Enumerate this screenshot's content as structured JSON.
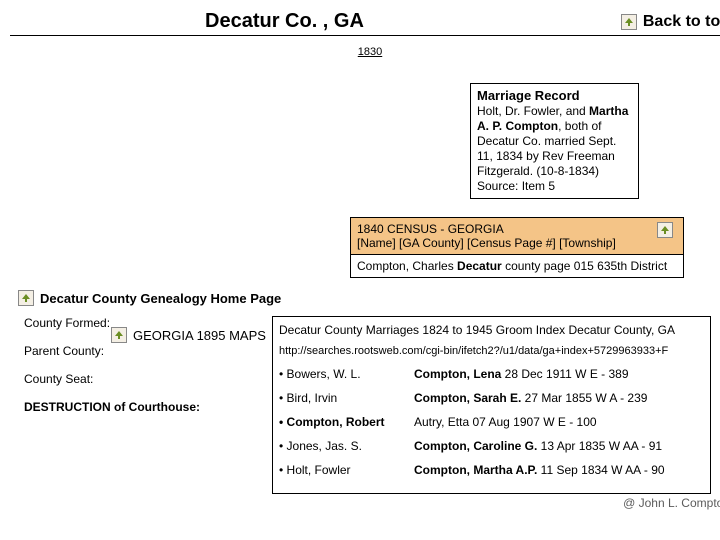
{
  "header": {
    "title": "Decatur Co. , GA",
    "back": "Back to top"
  },
  "year": "1830",
  "marriage": {
    "title": "Marriage Record",
    "line1a": "Holt, Dr. Fowler, and ",
    "line1b": "Martha A. P. Compton",
    "line2": ", both of Decatur Co. married Sept. 11, 1834 by Rev Freeman Fitzgerald. (10-8-1834) Source: Item 5"
  },
  "census": {
    "header": "1840 CENSUS - GEORGIA",
    "sub": "[Name] [GA County] [Census Page #] [Township]",
    "row_a": "Compton, Charles ",
    "row_b": "Decatur",
    "row_c": " county page 015 635th District"
  },
  "maps": "GEORGIA 1895 MAPS",
  "genealogy": "Decatur County Genealogy Home Page",
  "left": {
    "formed": "County Formed:",
    "parent": "Parent County:",
    "seat": "County Seat:",
    "destruction": "DESTRUCTION of Courthouse:"
  },
  "marriages": {
    "title": "Decatur County Marriages 1824 to 1945 Groom Index Decatur County, GA",
    "url": "http://searches.rootsweb.com/cgi-bin/ifetch2?/u1/data/ga+index+5729963933+F",
    "rows": [
      {
        "c1": "• Bowers, W. L.",
        "c2a": "Compton, Lena",
        "c2b": " 28 Dec 1911 W E - 389",
        "bold1": false
      },
      {
        "c1": "• Bird, Irvin",
        "c2a": "Compton, Sarah E.",
        "c2b": " 27 Mar 1855 W A - 239",
        "bold1": false
      },
      {
        "c1": "• Compton, Robert",
        "c2a": "",
        "c2b": "Autry, Etta 07 Aug 1907 W E - 100",
        "bold1": true
      },
      {
        "c1": "• Jones, Jas. S.",
        "c2a": "Compton, Caroline G.",
        "c2b": " 13 Apr 1835 W AA - 91",
        "bold1": false
      },
      {
        "c1": "• Holt, Fowler",
        "c2a": "Compton, Martha A.P.",
        "c2b": " 11 Sep 1834 W AA - 90",
        "bold1": false
      }
    ]
  },
  "footer": "@ John L. Compton",
  "colors": {
    "census_bg": "#f4c487",
    "icon_bg": "#f4efe4"
  }
}
